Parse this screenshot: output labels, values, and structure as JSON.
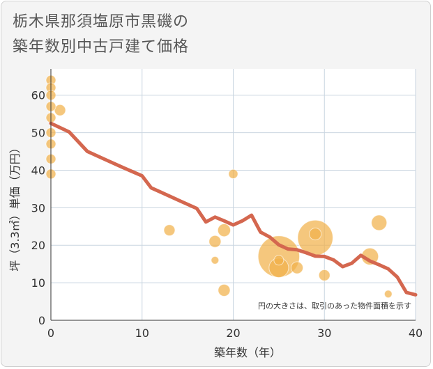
{
  "title_lines": [
    "栃木県那須塩原市黒磯の",
    "築年数別中古戸建て価格"
  ],
  "chart_data": {
    "type": "scatter",
    "xlabel": "築年数（年）",
    "ylabel": "坪（3.3㎡）単価（万円）",
    "xlim": [
      0,
      40
    ],
    "ylim": [
      0,
      67
    ],
    "xticks": [
      0,
      10,
      20,
      30,
      40
    ],
    "yticks": [
      0,
      10,
      20,
      30,
      40,
      50,
      60
    ],
    "grid": true,
    "note": "円の大きさは、取引のあった物件面積を示す",
    "colors": {
      "bubble": "#f1b24b",
      "line": "#d4674f",
      "grid": "#c9d5e0"
    },
    "points": [
      {
        "x": 0,
        "y": 64,
        "size": 1
      },
      {
        "x": 0,
        "y": 62,
        "size": 1
      },
      {
        "x": 0,
        "y": 60,
        "size": 1
      },
      {
        "x": 0,
        "y": 57,
        "size": 1
      },
      {
        "x": 0,
        "y": 54,
        "size": 1
      },
      {
        "x": 0,
        "y": 50,
        "size": 1
      },
      {
        "x": 0,
        "y": 47,
        "size": 1
      },
      {
        "x": 0,
        "y": 43,
        "size": 1
      },
      {
        "x": 0,
        "y": 39,
        "size": 1
      },
      {
        "x": 1,
        "y": 56,
        "size": 1.3
      },
      {
        "x": 13,
        "y": 24,
        "size": 1.3
      },
      {
        "x": 18,
        "y": 21,
        "size": 1.5
      },
      {
        "x": 18,
        "y": 16,
        "size": 0.6
      },
      {
        "x": 19,
        "y": 24,
        "size": 1.7
      },
      {
        "x": 19,
        "y": 8,
        "size": 1.5
      },
      {
        "x": 20,
        "y": 39,
        "size": 0.9
      },
      {
        "x": 25,
        "y": 17,
        "size": 18
      },
      {
        "x": 25,
        "y": 14,
        "size": 4
      },
      {
        "x": 25,
        "y": 16,
        "size": 1
      },
      {
        "x": 27,
        "y": 14,
        "size": 1.5
      },
      {
        "x": 29,
        "y": 22,
        "size": 13
      },
      {
        "x": 29,
        "y": 23,
        "size": 1.5
      },
      {
        "x": 30,
        "y": 12,
        "size": 1.3
      },
      {
        "x": 35,
        "y": 17,
        "size": 3
      },
      {
        "x": 36,
        "y": 26,
        "size": 2.5
      },
      {
        "x": 37,
        "y": 7,
        "size": 0.6
      }
    ],
    "trend": {
      "x": [
        0,
        2,
        4,
        6,
        8,
        10,
        11,
        12,
        14,
        16,
        17,
        18,
        19,
        20,
        21,
        22,
        23,
        24,
        25,
        26,
        27,
        28,
        29,
        30,
        31,
        32,
        33,
        34,
        35,
        36,
        37,
        38,
        39,
        40
      ],
      "y": [
        52.5,
        50.2,
        45,
        42.8,
        40.6,
        38.5,
        35.3,
        34.2,
        32,
        29.8,
        26.2,
        27.5,
        26.5,
        25.4,
        26.5,
        28,
        23.5,
        22.2,
        20.1,
        19,
        18.8,
        18,
        17.1,
        17,
        16.1,
        14.3,
        15.2,
        17.3,
        15.8,
        14.8,
        13.7,
        11.5,
        7.4,
        6.8
      ]
    }
  }
}
